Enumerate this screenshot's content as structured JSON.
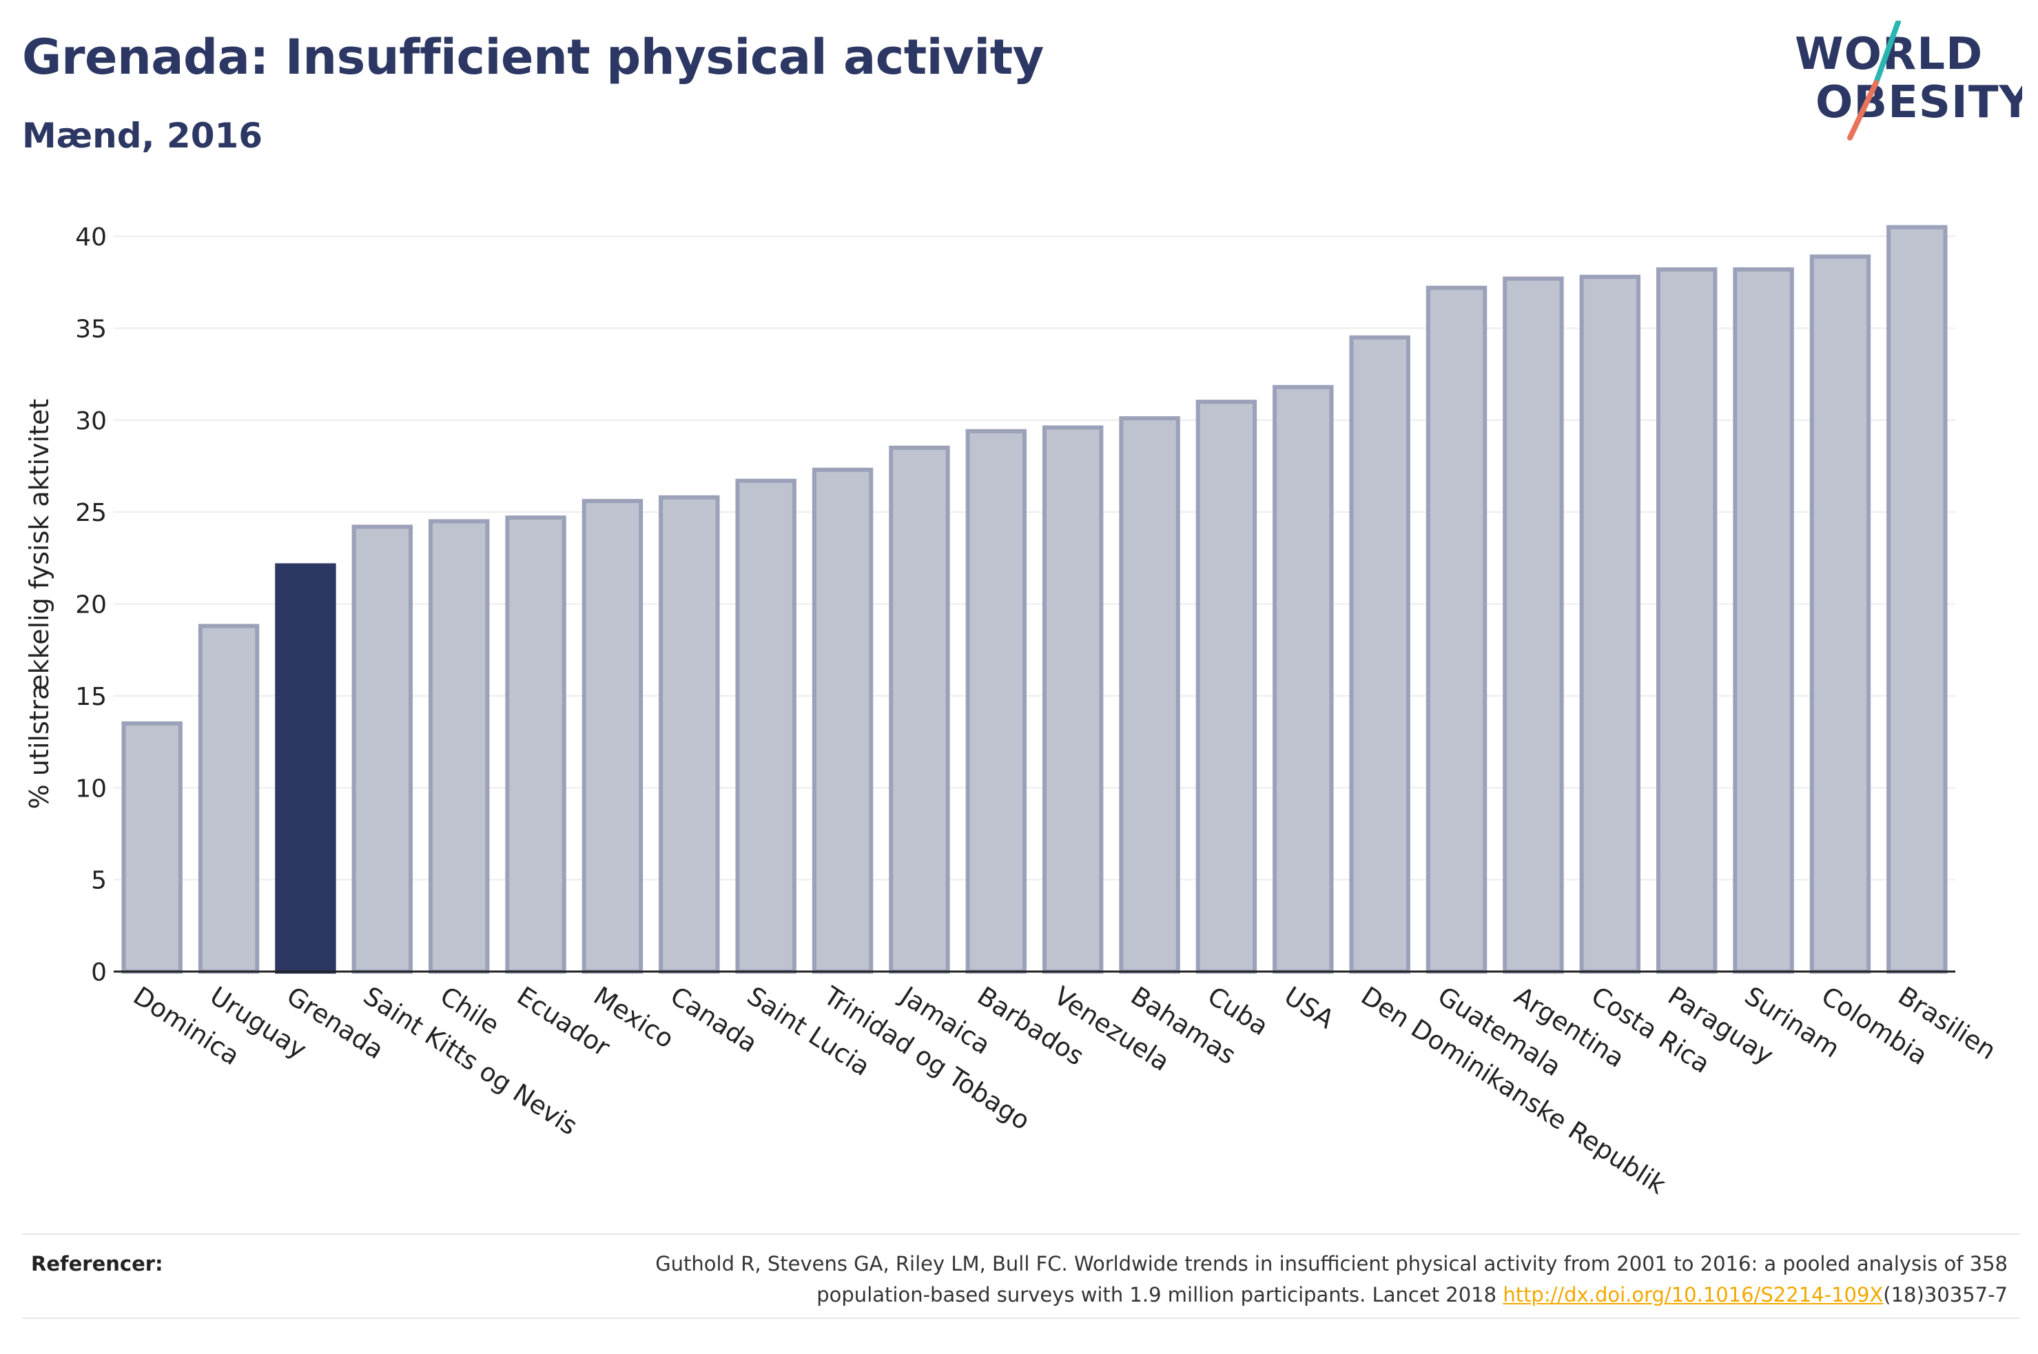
{
  "title": "Grenada: Insufficient physical activity",
  "subtitle": "Mænd, 2016",
  "logo": {
    "line1": "WORLD",
    "line2": "OBESITY"
  },
  "references": {
    "label": "Referencer:",
    "text_line1": "Guthold R, Stevens GA, Riley LM, Bull FC. Worldwide trends in insufficient physical activity from 2001 to 2016: a pooled analysis of 358",
    "text_line2_prefix": "population-based surveys with 1.9 million participants. Lancet 2018 ",
    "link": "http://dx.doi.org/10.1016/S2214-109X",
    "text_line2_suffix": "(18)30357-7"
  },
  "colors": {
    "title": "#2c3763",
    "highlight_bar": "#2c3763",
    "bar_fill": "#bfc3d0",
    "bar_stroke": "#9aa1b9",
    "logo_teal": "#2bb5b0",
    "logo_coral": "#e8735a",
    "link": "#f2a900"
  },
  "chart_data": {
    "type": "bar",
    "title": "Grenada: Insufficient physical activity",
    "subtitle": "Mænd, 2016",
    "xlabel": "",
    "ylabel": "% utilstrækkelig fysisk aktivitet",
    "ylim": [
      0,
      40
    ],
    "yticks": [
      0,
      5,
      10,
      15,
      20,
      25,
      30,
      35,
      40
    ],
    "grid": true,
    "highlight": "Grenada",
    "categories": [
      "Dominica",
      "Uruguay",
      "Grenada",
      "Saint Kitts og Nevis",
      "Chile",
      "Ecuador",
      "Mexico",
      "Canada",
      "Saint Lucia",
      "Trinidad og Tobago",
      "Jamaica",
      "Barbados",
      "Venezuela",
      "Bahamas",
      "Cuba",
      "USA",
      "Den Dominikanske Republik",
      "Guatemala",
      "Argentina",
      "Costa Rica",
      "Paraguay",
      "Surinam",
      "Colombia",
      "Brasilien"
    ],
    "values": [
      13.5,
      18.8,
      22.1,
      24.2,
      24.5,
      24.7,
      25.6,
      25.8,
      26.7,
      27.3,
      28.5,
      29.4,
      29.6,
      30.1,
      31.0,
      31.8,
      34.5,
      37.2,
      37.7,
      37.8,
      38.2,
      38.2,
      38.9,
      40.5
    ]
  }
}
